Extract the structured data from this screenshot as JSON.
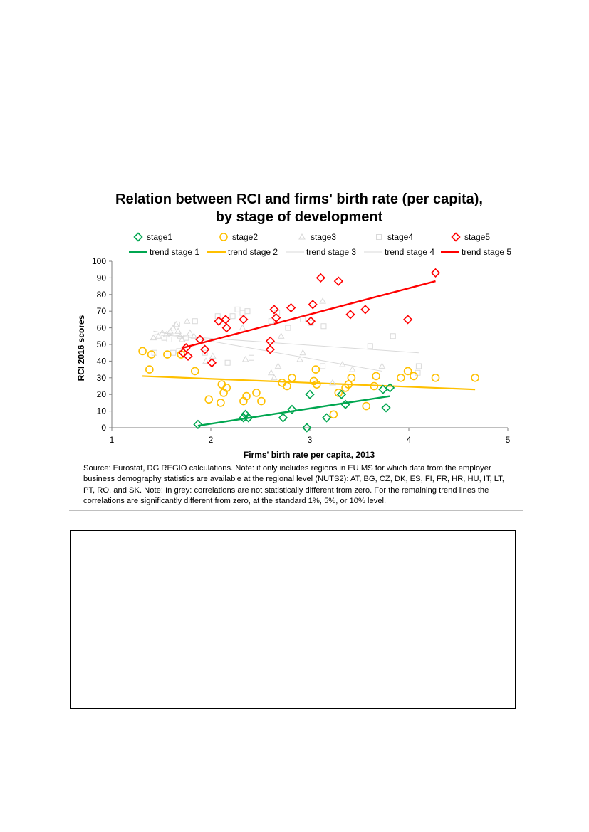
{
  "chart_data": {
    "type": "scatter",
    "title": "Relation between RCI and firms' birth rate (per capita), by stage of development",
    "xlabel": "Firms' birth rate per capita, 2013",
    "ylabel": "RCI 2016 scores",
    "xlim": [
      1,
      5
    ],
    "ylim": [
      0,
      100
    ],
    "xticks": [
      1,
      2,
      3,
      4,
      5
    ],
    "yticks": [
      0,
      10,
      20,
      30,
      40,
      50,
      60,
      70,
      80,
      90,
      100
    ],
    "grid": false,
    "legend_position": "top",
    "series": [
      {
        "name": "stage1",
        "marker": "diamond",
        "color": "#00a650",
        "points": [
          [
            1.87,
            2
          ],
          [
            2.33,
            6
          ],
          [
            2.35,
            8
          ],
          [
            2.38,
            6
          ],
          [
            2.73,
            6
          ],
          [
            2.82,
            11
          ],
          [
            2.97,
            0
          ],
          [
            3.0,
            20
          ],
          [
            3.17,
            6
          ],
          [
            3.32,
            20
          ],
          [
            3.36,
            14
          ],
          [
            3.74,
            23
          ],
          [
            3.77,
            12
          ],
          [
            3.81,
            24
          ]
        ]
      },
      {
        "name": "stage2",
        "marker": "circle",
        "color": "#ffc000",
        "points": [
          [
            1.31,
            46
          ],
          [
            1.38,
            35
          ],
          [
            1.4,
            44
          ],
          [
            1.56,
            44
          ],
          [
            1.7,
            44
          ],
          [
            1.84,
            34
          ],
          [
            1.98,
            17
          ],
          [
            2.1,
            15
          ],
          [
            2.11,
            26
          ],
          [
            2.13,
            21
          ],
          [
            2.16,
            24
          ],
          [
            2.33,
            16
          ],
          [
            2.36,
            19
          ],
          [
            2.46,
            21
          ],
          [
            2.51,
            16
          ],
          [
            2.72,
            27
          ],
          [
            2.77,
            25
          ],
          [
            2.82,
            30
          ],
          [
            3.04,
            28
          ],
          [
            3.06,
            35
          ],
          [
            3.07,
            26
          ],
          [
            3.24,
            8
          ],
          [
            3.29,
            21
          ],
          [
            3.36,
            24
          ],
          [
            3.39,
            26
          ],
          [
            3.42,
            30
          ],
          [
            3.57,
            13
          ],
          [
            3.65,
            25
          ],
          [
            3.67,
            31
          ],
          [
            3.92,
            30
          ],
          [
            3.99,
            34
          ],
          [
            4.05,
            31
          ],
          [
            4.27,
            30
          ],
          [
            4.67,
            30
          ]
        ]
      },
      {
        "name": "stage3",
        "marker": "triangle",
        "color": "#d9d9d9",
        "points": [
          [
            1.42,
            54
          ],
          [
            1.47,
            55
          ],
          [
            1.51,
            57
          ],
          [
            1.55,
            56
          ],
          [
            1.59,
            58
          ],
          [
            1.62,
            60
          ],
          [
            1.65,
            62
          ],
          [
            1.67,
            58
          ],
          [
            1.69,
            55
          ],
          [
            1.71,
            53
          ],
          [
            1.76,
            64
          ],
          [
            1.79,
            57
          ],
          [
            1.83,
            55
          ],
          [
            1.95,
            40
          ],
          [
            2.02,
            43
          ],
          [
            2.32,
            60
          ],
          [
            2.35,
            41
          ],
          [
            2.61,
            33
          ],
          [
            2.64,
            30
          ],
          [
            2.68,
            37
          ],
          [
            2.71,
            55
          ],
          [
            2.9,
            41
          ],
          [
            2.93,
            45
          ],
          [
            3.13,
            76
          ],
          [
            3.23,
            27
          ],
          [
            3.33,
            38
          ],
          [
            3.43,
            35
          ],
          [
            3.73,
            37
          ]
        ]
      },
      {
        "name": "stage4",
        "marker": "square",
        "color": "#d9d9d9",
        "points": [
          [
            1.43,
            45
          ],
          [
            1.53,
            54
          ],
          [
            1.58,
            53
          ],
          [
            1.62,
            45
          ],
          [
            1.66,
            62
          ],
          [
            1.68,
            46
          ],
          [
            1.75,
            54
          ],
          [
            1.84,
            64
          ],
          [
            1.94,
            45
          ],
          [
            2.07,
            67
          ],
          [
            2.17,
            39
          ],
          [
            2.22,
            67
          ],
          [
            2.27,
            71
          ],
          [
            2.32,
            69
          ],
          [
            2.37,
            70
          ],
          [
            2.41,
            42
          ],
          [
            2.61,
            64
          ],
          [
            2.67,
            69
          ],
          [
            2.78,
            60
          ],
          [
            2.93,
            65
          ],
          [
            3.01,
            63
          ],
          [
            3.13,
            37
          ],
          [
            3.14,
            61
          ],
          [
            3.61,
            49
          ],
          [
            3.84,
            55
          ],
          [
            4.09,
            33
          ],
          [
            4.1,
            37
          ]
        ]
      },
      {
        "name": "stage5",
        "marker": "diamond",
        "color": "#ff0000",
        "points": [
          [
            1.72,
            45
          ],
          [
            1.75,
            48
          ],
          [
            1.77,
            43
          ],
          [
            1.89,
            53
          ],
          [
            1.94,
            47
          ],
          [
            2.01,
            39
          ],
          [
            2.08,
            64
          ],
          [
            2.15,
            65
          ],
          [
            2.16,
            60
          ],
          [
            2.33,
            65
          ],
          [
            2.6,
            52
          ],
          [
            2.6,
            47
          ],
          [
            2.64,
            71
          ],
          [
            2.66,
            66
          ],
          [
            2.81,
            72
          ],
          [
            3.01,
            64
          ],
          [
            3.03,
            74
          ],
          [
            3.11,
            90
          ],
          [
            3.29,
            88
          ],
          [
            3.41,
            68
          ],
          [
            3.56,
            71
          ],
          [
            3.99,
            65
          ],
          [
            4.27,
            93
          ]
        ]
      }
    ],
    "trendlines": [
      {
        "name": "trend stage 1",
        "color": "#00a650",
        "width": 2.4,
        "from": [
          1.87,
          1.2
        ],
        "to": [
          3.81,
          19
        ]
      },
      {
        "name": "trend stage 2",
        "color": "#ffc000",
        "width": 2.2,
        "from": [
          1.31,
          31
        ],
        "to": [
          4.67,
          23
        ]
      },
      {
        "name": "trend stage 3",
        "color": "#d9d9d9",
        "width": 1.0,
        "from": [
          1.42,
          58
        ],
        "to": [
          3.73,
          34
        ]
      },
      {
        "name": "trend stage 4",
        "color": "#d9d9d9",
        "width": 1.0,
        "from": [
          1.43,
          56
        ],
        "to": [
          4.1,
          45
        ]
      },
      {
        "name": "trend stage 5",
        "color": "#ff0000",
        "width": 2.4,
        "from": [
          1.72,
          48
        ],
        "to": [
          4.27,
          88
        ]
      }
    ]
  },
  "source_note": "Source: Eurostat, DG REGIO calculations. Note: it only includes regions in EU MS for which data from the employer business demography statistics are available at the regional level (NUTS2): AT, BG, CZ, DK, ES, FI, FR, HR, HU, IT, LT, PT, RO, and SK. Note: In grey: correlations are not statistically different from zero. For the remaining trend lines the correlations are significantly different from zero, at the standard 1%, 5%, or 10% level."
}
